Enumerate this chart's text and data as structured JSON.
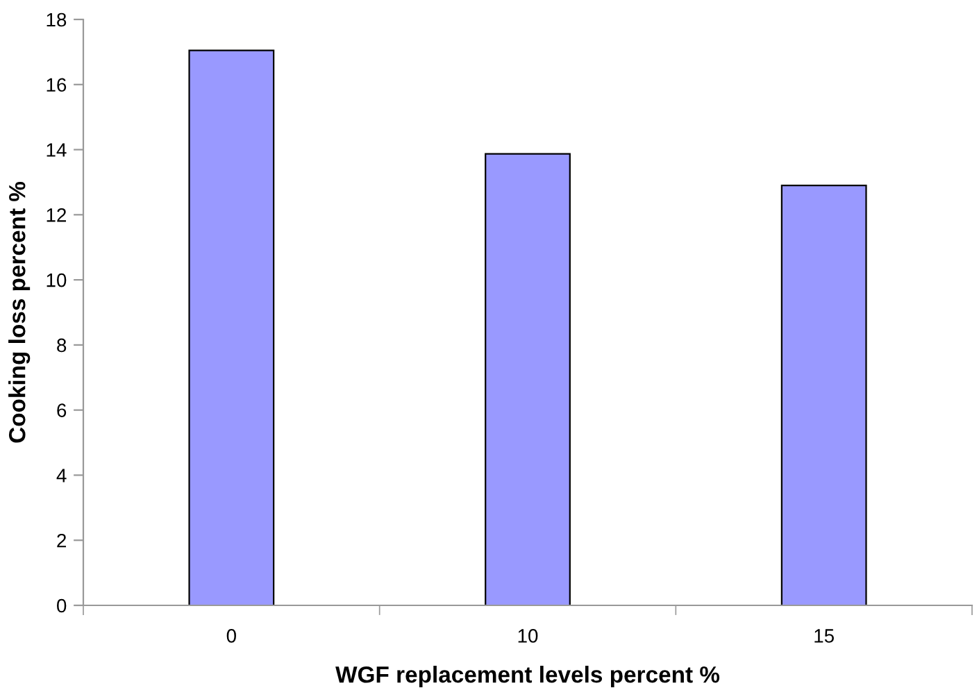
{
  "chart_data": {
    "type": "bar",
    "xlabel": "WGF replacement levels percent %",
    "ylabel": "Cooking loss percent %",
    "categories": [
      "0",
      "10",
      "15"
    ],
    "values": [
      17.05,
      13.87,
      12.9
    ],
    "color": "#9999ff",
    "ylim": [
      0,
      18
    ],
    "yticks": [
      0,
      2,
      4,
      6,
      8,
      10,
      12,
      14,
      16,
      18
    ],
    "grid": false,
    "legend": false
  }
}
